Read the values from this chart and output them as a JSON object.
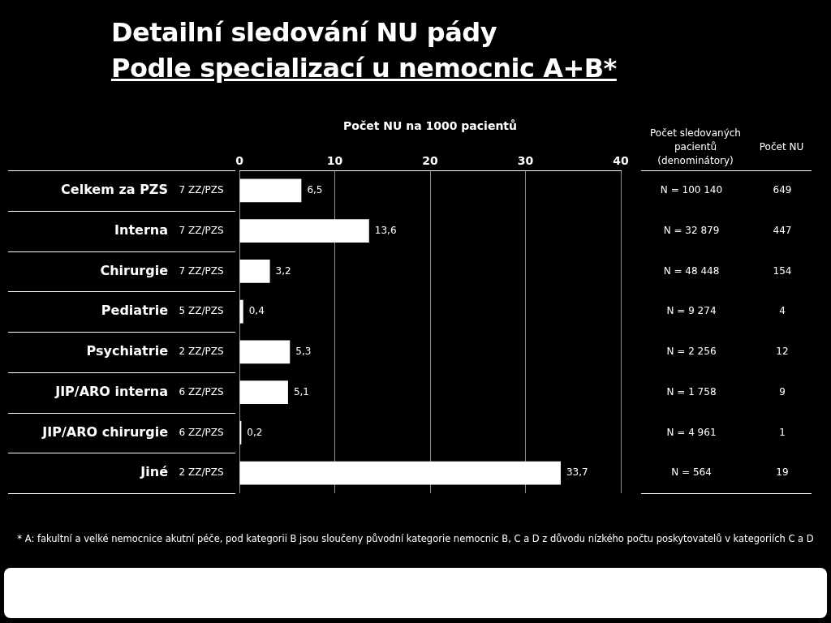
{
  "chart_data": {
    "type": "bar",
    "orientation": "horizontal",
    "title": "Detailní sledování NU pády\nPodle specializací u nemocnic A+B*",
    "xlabel": "Počet NU na 1000 pacientů",
    "categories": [
      "Celkem za PZS",
      "Interna",
      "Chirurgie",
      "Pediatrie",
      "Psychiatrie",
      "JIP/ARO interna",
      "JIP/ARO chirurgie",
      "Jiné"
    ],
    "values": [
      6.5,
      13.6,
      3.2,
      0.4,
      5.3,
      5.1,
      0.2,
      33.7
    ],
    "value_labels": [
      "6,5",
      "13,6",
      "3,2",
      "0,4",
      "5,3",
      "5,1",
      "0,2",
      "33,7"
    ],
    "color": "#ffffff",
    "xlim": [
      0,
      40
    ],
    "xticks": [
      0,
      10,
      20,
      30,
      40
    ],
    "grid": "x",
    "annotations": [
      "Počet sledovaných pacientů (denominátory)",
      "Počet NU",
      "7 ZZ/PZS",
      "N = 100 140",
      "649",
      "7 ZZ/PZS",
      "N = 32 879",
      "447",
      "7 ZZ/PZS",
      "N = 48 448",
      "154",
      "5 ZZ/PZS",
      "N = 9 274",
      "4",
      "2 ZZ/PZS",
      "N = 2 256",
      "12",
      "6 ZZ/PZS",
      "N = 1 758",
      "9",
      "6 ZZ/PZS",
      "N = 4 961",
      "1",
      "2 ZZ/PZS",
      "N = 564",
      "19",
      "* A: fakultní a velké nemocnice akutní péče, pod kategorii B jsou sloučeny původní kategorie nemocnic B, C a D z důvodu nízkého počtu poskytovatelů v kategoriích C a D"
    ]
  }
}
